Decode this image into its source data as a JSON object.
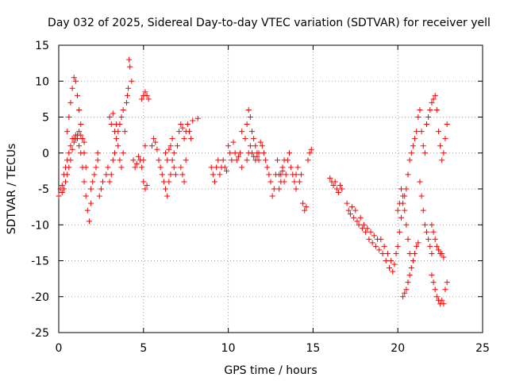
{
  "chart_data": {
    "type": "scatter",
    "title": "Day 032 of 2025, Sidereal Day-to-day VTEC variation (SDTVAR) for receiver yell",
    "xlabel": "GPS time / hours",
    "ylabel": "SDTVAR / TECUs",
    "xlim": [
      0,
      25
    ],
    "ylim": [
      -25,
      15
    ],
    "xticks": [
      "0",
      "5",
      "10",
      "15",
      "20",
      "25"
    ],
    "yticks": [
      "15",
      "10",
      "5",
      "0",
      "-5",
      "-10",
      "-15",
      "-20",
      "-25"
    ],
    "grid": true,
    "marker": "+",
    "color": "#ff0000",
    "series": [
      {
        "name": "SDTVAR",
        "points": [
          [
            0.0,
            -6
          ],
          [
            0.1,
            -5
          ],
          [
            0.2,
            -4.5
          ],
          [
            0.3,
            -3
          ],
          [
            0.4,
            -2
          ],
          [
            0.5,
            -1
          ],
          [
            0.6,
            0
          ],
          [
            0.7,
            1
          ],
          [
            0.8,
            2
          ],
          [
            0.9,
            2
          ],
          [
            1.0,
            2.5
          ],
          [
            1.1,
            2
          ],
          [
            1.2,
            1
          ],
          [
            1.3,
            0
          ],
          [
            1.4,
            -2
          ],
          [
            1.5,
            -4
          ],
          [
            1.6,
            -6
          ],
          [
            1.7,
            -8
          ],
          [
            1.8,
            -9.5
          ],
          [
            1.9,
            -7
          ],
          [
            0.5,
            3
          ],
          [
            0.6,
            5
          ],
          [
            0.7,
            7
          ],
          [
            0.8,
            9
          ],
          [
            0.9,
            10.5
          ],
          [
            1.0,
            10
          ],
          [
            1.1,
            8
          ],
          [
            1.2,
            6
          ],
          [
            1.3,
            4
          ],
          [
            1.4,
            2
          ],
          [
            1.5,
            0
          ],
          [
            1.6,
            -2
          ],
          [
            0.2,
            -5.5
          ],
          [
            0.3,
            -5
          ],
          [
            0.4,
            -4
          ],
          [
            0.5,
            -3
          ],
          [
            0.6,
            -2
          ],
          [
            0.7,
            -1
          ],
          [
            0.8,
            0.5
          ],
          [
            0.9,
            1.5
          ],
          [
            1.0,
            2
          ],
          [
            1.1,
            2.5
          ],
          [
            1.2,
            3
          ],
          [
            1.3,
            2.5
          ],
          [
            1.4,
            2
          ],
          [
            1.5,
            1.5
          ],
          [
            1.9,
            -5
          ],
          [
            2.0,
            -4
          ],
          [
            2.1,
            -3
          ],
          [
            2.2,
            -2
          ],
          [
            2.3,
            -1
          ],
          [
            2.3,
            0
          ],
          [
            2.4,
            -6
          ],
          [
            2.5,
            -5
          ],
          [
            2.6,
            -4
          ],
          [
            2.8,
            -3
          ],
          [
            2.9,
            -2
          ],
          [
            3.0,
            -4
          ],
          [
            3.1,
            -3
          ],
          [
            3.2,
            -1
          ],
          [
            3.3,
            0
          ],
          [
            3.4,
            2
          ],
          [
            3.5,
            3
          ],
          [
            3.6,
            4
          ],
          [
            3.7,
            5
          ],
          [
            3.8,
            6
          ],
          [
            3.0,
            5
          ],
          [
            3.1,
            4
          ],
          [
            3.2,
            5.5
          ],
          [
            3.3,
            3
          ],
          [
            3.4,
            4
          ],
          [
            3.5,
            1
          ],
          [
            3.6,
            -1
          ],
          [
            3.7,
            -2
          ],
          [
            3.8,
            0
          ],
          [
            3.9,
            3
          ],
          [
            4.0,
            7
          ],
          [
            4.1,
            9
          ],
          [
            4.2,
            12
          ],
          [
            4.3,
            10
          ],
          [
            4.15,
            13
          ],
          [
            4.05,
            8
          ],
          [
            4.4,
            -1
          ],
          [
            4.5,
            -2
          ],
          [
            4.6,
            -1.5
          ],
          [
            4.7,
            -0.5
          ],
          [
            4.8,
            -1
          ],
          [
            4.9,
            -2
          ],
          [
            5.0,
            -1
          ],
          [
            5.1,
            1
          ],
          [
            4.9,
            7.5
          ],
          [
            5.0,
            8
          ],
          [
            5.1,
            8.5
          ],
          [
            5.2,
            8
          ],
          [
            5.3,
            7.5
          ],
          [
            5.0,
            -4
          ],
          [
            5.1,
            -5
          ],
          [
            5.2,
            -4.5
          ],
          [
            5.5,
            1
          ],
          [
            5.6,
            2
          ],
          [
            5.7,
            1.5
          ],
          [
            5.8,
            0.5
          ],
          [
            5.9,
            -1
          ],
          [
            6.0,
            -2
          ],
          [
            6.1,
            -3
          ],
          [
            6.2,
            -4
          ],
          [
            6.3,
            -5
          ],
          [
            6.4,
            -6
          ],
          [
            6.5,
            -4
          ],
          [
            6.6,
            -3
          ],
          [
            6.7,
            -1
          ],
          [
            6.8,
            0
          ],
          [
            6.3,
            0
          ],
          [
            6.4,
            -1
          ],
          [
            6.5,
            0.5
          ],
          [
            6.6,
            1
          ],
          [
            6.7,
            2
          ],
          [
            6.8,
            -2
          ],
          [
            6.9,
            -3
          ],
          [
            7.0,
            1
          ],
          [
            7.1,
            3
          ],
          [
            7.2,
            4
          ],
          [
            7.3,
            3.5
          ],
          [
            7.4,
            2
          ],
          [
            7.5,
            3
          ],
          [
            7.6,
            4
          ],
          [
            7.7,
            3
          ],
          [
            7.8,
            2
          ],
          [
            7.9,
            4.5
          ],
          [
            7.2,
            -2
          ],
          [
            7.3,
            -3
          ],
          [
            7.4,
            -4
          ],
          [
            7.5,
            -1
          ],
          [
            8.2,
            4.8
          ],
          [
            9.0,
            -2
          ],
          [
            9.1,
            -3
          ],
          [
            9.2,
            -4
          ],
          [
            9.3,
            -2
          ],
          [
            9.4,
            -1
          ],
          [
            9.5,
            -3
          ],
          [
            9.6,
            -2
          ],
          [
            9.7,
            -1
          ],
          [
            9.8,
            -2
          ],
          [
            9.9,
            -2.5
          ],
          [
            10.0,
            1
          ],
          [
            10.1,
            0
          ],
          [
            10.2,
            -1
          ],
          [
            10.3,
            1.5
          ],
          [
            10.4,
            0
          ],
          [
            10.5,
            -1
          ],
          [
            10.6,
            -0.5
          ],
          [
            10.7,
            0
          ],
          [
            10.8,
            -2
          ],
          [
            10.8,
            3
          ],
          [
            11.0,
            2
          ],
          [
            11.1,
            4
          ],
          [
            11.2,
            6
          ],
          [
            11.3,
            5
          ],
          [
            11.4,
            3
          ],
          [
            11.5,
            2
          ],
          [
            11.6,
            1
          ],
          [
            11.7,
            0
          ],
          [
            11.8,
            -1
          ],
          [
            11.1,
            -1
          ],
          [
            11.2,
            0
          ],
          [
            11.3,
            1
          ],
          [
            11.4,
            0
          ],
          [
            11.5,
            -0.5
          ],
          [
            11.6,
            -1
          ],
          [
            11.7,
            -0.5
          ],
          [
            11.8,
            0
          ],
          [
            11.9,
            1.5
          ],
          [
            12.0,
            1
          ],
          [
            12.1,
            0
          ],
          [
            12.2,
            -1
          ],
          [
            12.3,
            -2
          ],
          [
            12.4,
            -3
          ],
          [
            12.5,
            -4
          ],
          [
            12.6,
            -6
          ],
          [
            12.7,
            -5
          ],
          [
            12.8,
            -3
          ],
          [
            12.9,
            -1
          ],
          [
            13.0,
            -3
          ],
          [
            13.1,
            -4
          ],
          [
            13.2,
            -2
          ],
          [
            13.3,
            -1
          ],
          [
            13.0,
            -5
          ],
          [
            13.1,
            -3
          ],
          [
            13.2,
            -2.5
          ],
          [
            13.3,
            -4
          ],
          [
            13.4,
            -3
          ],
          [
            13.5,
            -1
          ],
          [
            13.6,
            0
          ],
          [
            13.7,
            -2
          ],
          [
            13.8,
            -3
          ],
          [
            13.9,
            -4
          ],
          [
            14.0,
            -5
          ],
          [
            14.0,
            -3
          ],
          [
            14.1,
            -2
          ],
          [
            14.2,
            -4
          ],
          [
            14.3,
            -3
          ],
          [
            14.4,
            -7
          ],
          [
            14.5,
            -8
          ],
          [
            14.6,
            -7.5
          ],
          [
            14.7,
            -1
          ],
          [
            14.8,
            0
          ],
          [
            14.9,
            0.5
          ],
          [
            16.0,
            -3.5
          ],
          [
            16.1,
            -4
          ],
          [
            16.2,
            -4.5
          ],
          [
            16.3,
            -4
          ],
          [
            16.4,
            -5
          ],
          [
            16.5,
            -5.5
          ],
          [
            16.6,
            -4.5
          ],
          [
            16.7,
            -5
          ],
          [
            17.0,
            -7
          ],
          [
            17.1,
            -8
          ],
          [
            17.2,
            -8.5
          ],
          [
            17.3,
            -7.5
          ],
          [
            17.4,
            -9
          ],
          [
            17.5,
            -8
          ],
          [
            17.6,
            -9.5
          ],
          [
            17.7,
            -10
          ],
          [
            17.8,
            -9
          ],
          [
            17.9,
            -10.5
          ],
          [
            18.0,
            -10
          ],
          [
            18.1,
            -11
          ],
          [
            18.2,
            -10.5
          ],
          [
            18.3,
            -12
          ],
          [
            18.4,
            -11
          ],
          [
            18.5,
            -12.5
          ],
          [
            18.6,
            -11.5
          ],
          [
            18.7,
            -13
          ],
          [
            18.8,
            -12
          ],
          [
            18.9,
            -13.5
          ],
          [
            19.0,
            -12
          ],
          [
            19.1,
            -14
          ],
          [
            19.2,
            -13
          ],
          [
            19.3,
            -15
          ],
          [
            19.4,
            -14
          ],
          [
            19.5,
            -16
          ],
          [
            19.6,
            -15
          ],
          [
            19.7,
            -16.5
          ],
          [
            19.8,
            -15.5
          ],
          [
            19.9,
            -14
          ],
          [
            20.0,
            -13
          ],
          [
            20.1,
            -11
          ],
          [
            20.2,
            -9
          ],
          [
            20.3,
            -7
          ],
          [
            20.4,
            -6
          ],
          [
            20.5,
            -5
          ],
          [
            20.6,
            -3
          ],
          [
            20.7,
            -1
          ],
          [
            20.8,
            0
          ],
          [
            20.9,
            1
          ],
          [
            20.0,
            -8
          ],
          [
            20.1,
            -7
          ],
          [
            20.2,
            -5
          ],
          [
            20.3,
            -6
          ],
          [
            20.4,
            -8
          ],
          [
            20.5,
            -10
          ],
          [
            20.6,
            -12
          ],
          [
            20.7,
            -14
          ],
          [
            20.3,
            -20
          ],
          [
            20.4,
            -19.5
          ],
          [
            20.5,
            -19
          ],
          [
            20.6,
            -18
          ],
          [
            20.7,
            -17
          ],
          [
            20.8,
            -16
          ],
          [
            20.9,
            -15
          ],
          [
            21.0,
            -14
          ],
          [
            21.1,
            -13
          ],
          [
            21.2,
            -12.5
          ],
          [
            21.0,
            2
          ],
          [
            21.1,
            3
          ],
          [
            21.2,
            5
          ],
          [
            21.3,
            6
          ],
          [
            21.4,
            3
          ],
          [
            21.5,
            1
          ],
          [
            21.6,
            0
          ],
          [
            21.7,
            4
          ],
          [
            21.8,
            5
          ],
          [
            21.9,
            6
          ],
          [
            21.3,
            -4
          ],
          [
            21.4,
            -6
          ],
          [
            21.5,
            -8
          ],
          [
            21.6,
            -10
          ],
          [
            21.7,
            -11
          ],
          [
            21.8,
            -12
          ],
          [
            21.9,
            -13
          ],
          [
            22.0,
            -14
          ],
          [
            22.0,
            7
          ],
          [
            22.1,
            7.5
          ],
          [
            22.2,
            8
          ],
          [
            22.3,
            6
          ],
          [
            22.4,
            3
          ],
          [
            22.5,
            1
          ],
          [
            22.6,
            -1
          ],
          [
            22.7,
            0
          ],
          [
            22.8,
            2
          ],
          [
            22.9,
            4
          ],
          [
            22.0,
            -10
          ],
          [
            22.1,
            -11
          ],
          [
            22.2,
            -12
          ],
          [
            22.3,
            -13
          ],
          [
            22.4,
            -13.5
          ],
          [
            22.5,
            -14
          ],
          [
            22.6,
            -14
          ],
          [
            22.7,
            -14.5
          ],
          [
            22.0,
            -17
          ],
          [
            22.1,
            -18
          ],
          [
            22.2,
            -19
          ],
          [
            22.3,
            -20
          ],
          [
            22.4,
            -20.5
          ],
          [
            22.5,
            -21
          ],
          [
            22.6,
            -20.5
          ],
          [
            22.7,
            -21
          ],
          [
            22.8,
            -19
          ],
          [
            22.9,
            -18
          ]
        ]
      }
    ]
  }
}
